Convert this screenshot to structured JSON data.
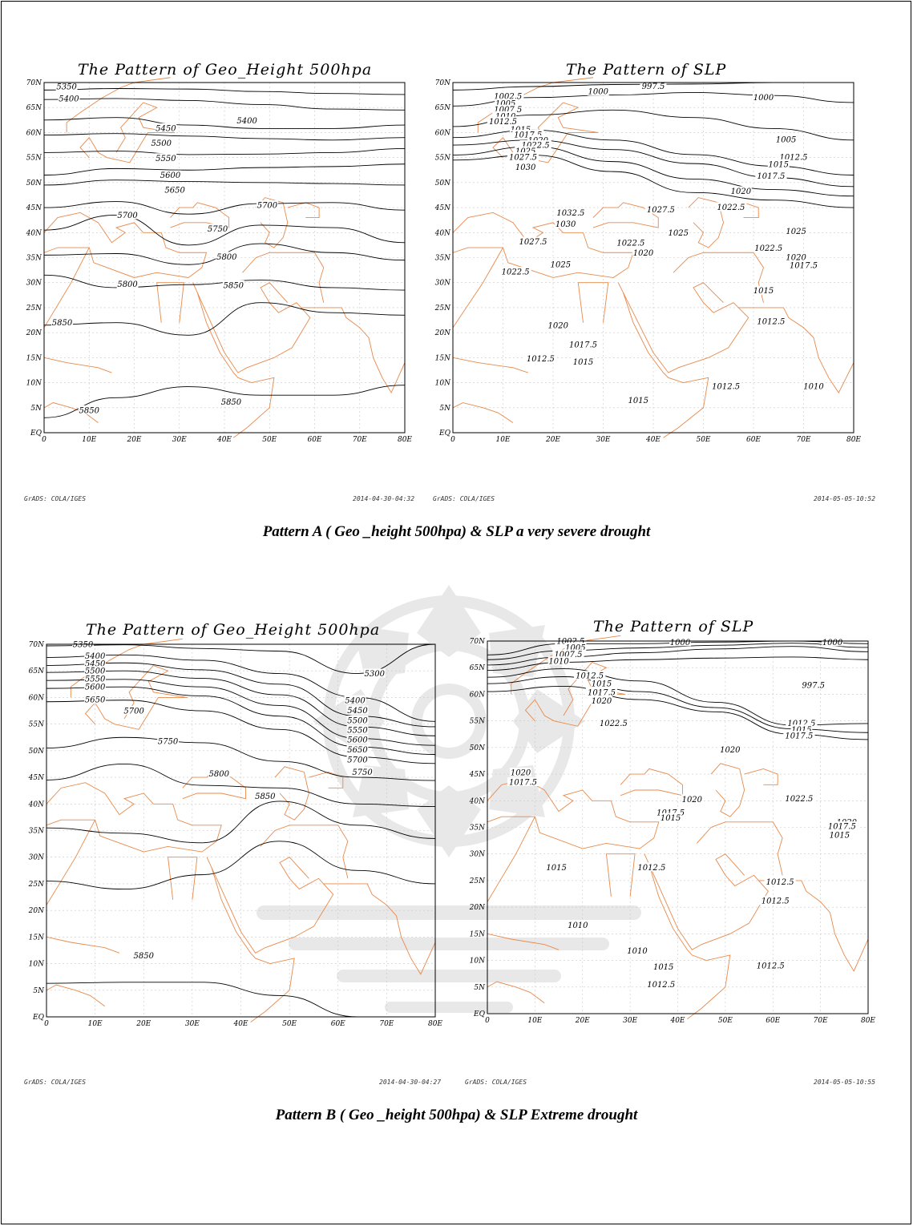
{
  "axis_labels": {
    "lat": [
      "70N",
      "65N",
      "60N",
      "55N",
      "50N",
      "45N",
      "40N",
      "35N",
      "30N",
      "25N",
      "20N",
      "15N",
      "10N",
      "5N",
      "EQ"
    ],
    "lon": [
      "0",
      "10E",
      "20E",
      "30E",
      "40E",
      "50E",
      "60E",
      "70E",
      "80E"
    ]
  },
  "colors": {
    "contour": "#000000",
    "coast": "#e8894a",
    "grid": "#c8c8c8",
    "watermark": "#9a9a9a"
  },
  "pattern_a": {
    "geo": {
      "title": "The Pattern of Geo_Height 500hpa",
      "footer_left": "GrADS: COLA/IGES",
      "footer_right": "2014-04-30-04:32",
      "contours": [
        {
          "value": "5350",
          "lat": [
            68.5,
            68.8,
            68.7,
            68.2,
            67.8,
            67.6
          ]
        },
        {
          "value": "5400",
          "lat": [
            66.6,
            66.8,
            66.4,
            65.6,
            64.7,
            64.5
          ]
        },
        {
          "value": "5450",
          "lat": [
            62.5,
            63,
            61.5,
            60.8,
            60.8,
            61.5
          ]
        },
        {
          "value": "5500",
          "lat": [
            59.5,
            59.8,
            59.3,
            58.8,
            58.5,
            59
          ]
        },
        {
          "value": "5550",
          "lat": [
            56,
            56.3,
            55.6,
            55.7,
            56,
            56.8
          ]
        },
        {
          "value": "5600",
          "lat": [
            51.5,
            52.8,
            52.5,
            53,
            53.2,
            53.7
          ]
        },
        {
          "value": "5650",
          "lat": [
            49.5,
            50.5,
            50.2,
            50,
            49.8,
            49.5
          ]
        },
        {
          "value": "5700",
          "lat": [
            45,
            46.2,
            43.7,
            45.8,
            46,
            44.5
          ]
        },
        {
          "value": "5750",
          "lat": [
            40.5,
            43.5,
            37.5,
            41.5,
            41,
            38
          ]
        },
        {
          "value": "5800",
          "lat": [
            35.5,
            35.8,
            33.6,
            37.8,
            36,
            34.5
          ]
        },
        {
          "value": "5800",
          "lat": [
            31.5,
            29,
            29.6,
            30.5,
            29,
            28.5
          ]
        },
        {
          "value": "5850",
          "lat": [
            21.5,
            22,
            19.5,
            26,
            24,
            23.5
          ]
        },
        {
          "value": "5850",
          "lat": [
            3,
            7,
            9.2,
            7.5,
            7.5,
            9.5
          ]
        }
      ],
      "labels": [
        {
          "text": "5350",
          "lon": 5,
          "lat": 69.2
        },
        {
          "text": "5400",
          "lon": 5.5,
          "lat": 66.8
        },
        {
          "text": "5400",
          "lon": 45,
          "lat": 62.4
        },
        {
          "text": "5450",
          "lon": 27,
          "lat": 60.9
        },
        {
          "text": "5500",
          "lon": 26,
          "lat": 57.9
        },
        {
          "text": "5550",
          "lon": 27,
          "lat": 54.9
        },
        {
          "text": "5600",
          "lon": 28,
          "lat": 51.5
        },
        {
          "text": "5650",
          "lon": 29,
          "lat": 48.5
        },
        {
          "text": "5700",
          "lon": 18.5,
          "lat": 43.5
        },
        {
          "text": "5700",
          "lon": 49.5,
          "lat": 45.5
        },
        {
          "text": "5750",
          "lon": 38.5,
          "lat": 40.8
        },
        {
          "text": "5800",
          "lon": 40.5,
          "lat": 35.2
        },
        {
          "text": "5800",
          "lon": 18.5,
          "lat": 29.7
        },
        {
          "text": "5850",
          "lon": 4,
          "lat": 22
        },
        {
          "text": "5850",
          "lon": 42,
          "lat": 29.5
        },
        {
          "text": "5850",
          "lon": 10,
          "lat": 4.5
        },
        {
          "text": "5850",
          "lon": 41.5,
          "lat": 6.2
        }
      ]
    },
    "slp": {
      "title": "The Pattern of SLP",
      "footer_left": "GrADS: COLA/IGES",
      "footer_right": "2014-05-05-10:52",
      "contours": [
        {
          "value": "997.5",
          "lat": [
            68.5,
            69.2,
            69.6,
            69.7,
            70,
            70
          ]
        },
        {
          "value": "1000",
          "lat": [
            65.3,
            67,
            67.5,
            68,
            67.4,
            66
          ]
        },
        {
          "value": "1005",
          "lat": [
            61.2,
            63.5,
            64.5,
            63,
            60.8,
            58.5
          ]
        },
        {
          "value": "1012.5",
          "lat": [
            59,
            60.5,
            58.5,
            55.6,
            53.3,
            51.5
          ]
        },
        {
          "value": "1015",
          "lat": [
            57.5,
            58.5,
            56.6,
            53.8,
            51,
            49.2
          ]
        },
        {
          "value": "1017.5",
          "lat": [
            55.5,
            57.2,
            54.2,
            50.7,
            48.6,
            47.3
          ]
        },
        {
          "value": "1020",
          "lat": [
            54.5,
            55.5,
            52.2,
            48,
            46.5,
            45
          ]
        }
      ],
      "labels": [
        {
          "text": "997.5",
          "lon": 40,
          "lat": 69.3
        },
        {
          "text": "1000",
          "lon": 29,
          "lat": 68.2
        },
        {
          "text": "1000",
          "lon": 62,
          "lat": 67
        },
        {
          "text": "1002.5",
          "lon": 11,
          "lat": 67.3
        },
        {
          "text": "1005",
          "lon": 10.5,
          "lat": 65.8
        },
        {
          "text": "1007.5",
          "lon": 11,
          "lat": 64.6
        },
        {
          "text": "1010",
          "lon": 10.5,
          "lat": 63.3
        },
        {
          "text": "1012.5",
          "lon": 10,
          "lat": 62.2
        },
        {
          "text": "1015",
          "lon": 13.5,
          "lat": 60.6
        },
        {
          "text": "1017.5",
          "lon": 15,
          "lat": 59.6
        },
        {
          "text": "1020",
          "lon": 17,
          "lat": 58.5
        },
        {
          "text": "1022.5",
          "lon": 16.5,
          "lat": 57.5
        },
        {
          "text": "1025",
          "lon": 14.5,
          "lat": 56.3
        },
        {
          "text": "1027.5",
          "lon": 14,
          "lat": 55.1
        },
        {
          "text": "1030",
          "lon": 14.5,
          "lat": 53.1
        },
        {
          "text": "1005",
          "lon": 66.5,
          "lat": 58.6
        },
        {
          "text": "1012.5",
          "lon": 68,
          "lat": 55.1
        },
        {
          "text": "1015",
          "lon": 65,
          "lat": 53.7
        },
        {
          "text": "1017.5",
          "lon": 63.5,
          "lat": 51.3
        },
        {
          "text": "1020",
          "lon": 57.5,
          "lat": 48.3
        },
        {
          "text": "1022.5",
          "lon": 55.5,
          "lat": 45.1
        },
        {
          "text": "1027.5",
          "lon": 41.5,
          "lat": 44.6
        },
        {
          "text": "1032.5",
          "lon": 23.5,
          "lat": 44
        },
        {
          "text": "1030",
          "lon": 22.5,
          "lat": 41.7
        },
        {
          "text": "1025",
          "lon": 45,
          "lat": 40
        },
        {
          "text": "1025",
          "lon": 68.5,
          "lat": 40.3
        },
        {
          "text": "1027.5",
          "lon": 16,
          "lat": 38.2
        },
        {
          "text": "1022.5",
          "lon": 35.5,
          "lat": 38
        },
        {
          "text": "1020",
          "lon": 38,
          "lat": 36
        },
        {
          "text": "1022.5",
          "lon": 63,
          "lat": 36.9
        },
        {
          "text": "1020",
          "lon": 68.5,
          "lat": 35.1
        },
        {
          "text": "1017.5",
          "lon": 70,
          "lat": 33.5
        },
        {
          "text": "1025",
          "lon": 21.5,
          "lat": 33.6
        },
        {
          "text": "1022.5",
          "lon": 12.5,
          "lat": 32.2
        },
        {
          "text": "1015",
          "lon": 62,
          "lat": 28.4
        },
        {
          "text": "1012.5",
          "lon": 63.5,
          "lat": 22.3
        },
        {
          "text": "1020",
          "lon": 21,
          "lat": 21.5
        },
        {
          "text": "1017.5",
          "lon": 26,
          "lat": 17.6
        },
        {
          "text": "1012.5",
          "lon": 17.5,
          "lat": 14.8
        },
        {
          "text": "1015",
          "lon": 26,
          "lat": 14.2
        },
        {
          "text": "1012.5",
          "lon": 54.5,
          "lat": 9.3
        },
        {
          "text": "1010",
          "lon": 72,
          "lat": 9.3
        },
        {
          "text": "1015",
          "lon": 37,
          "lat": 6.5
        }
      ]
    },
    "caption": "Pattern A ( Geo _height 500hpa) & SLP a very severe drought"
  },
  "pattern_b": {
    "geo": {
      "title": "The Pattern of Geo_Height 500hpa",
      "footer_left": "GrADS: COLA/IGES",
      "footer_right": "2014-04-30-04:27",
      "contours": [
        {
          "value": "5350",
          "lat": [
            69.7,
            69.9,
            69.2,
            68.7,
            64.5,
            70
          ]
        },
        {
          "value": "5400",
          "lat": [
            67.5,
            68,
            67,
            64.5,
            60,
            55.5
          ]
        },
        {
          "value": "5450",
          "lat": [
            66,
            66.5,
            65.2,
            62.5,
            56.5,
            54.5
          ]
        },
        {
          "value": "5500",
          "lat": [
            64.7,
            65,
            63.6,
            60.5,
            54.5,
            52.8
          ]
        },
        {
          "value": "5550",
          "lat": [
            63.2,
            63.4,
            62,
            58.5,
            52.3,
            51
          ]
        },
        {
          "value": "5600",
          "lat": [
            61.7,
            62,
            60.3,
            56.5,
            50.7,
            49.3
          ]
        },
        {
          "value": "5650",
          "lat": [
            59.2,
            59.5,
            57.5,
            54,
            48.8,
            47.6
          ]
        },
        {
          "value": "5700",
          "lat": [
            50.5,
            52.5,
            51.5,
            48,
            45,
            44.4
          ]
        },
        {
          "value": "5750",
          "lat": [
            44.5,
            47.5,
            43.5,
            43,
            40,
            39.5
          ]
        },
        {
          "value": "5800",
          "lat": [
            35.5,
            34.5,
            32.7,
            40.5,
            36,
            33.5
          ]
        },
        {
          "value": "5850",
          "lat": [
            25.5,
            24,
            26.7,
            33,
            27.5,
            25
          ]
        },
        {
          "value": "5850",
          "lat": [
            6.3,
            6.5,
            6.5,
            4,
            0,
            0
          ]
        }
      ],
      "labels": [
        {
          "text": "5350",
          "lon": 7.5,
          "lat": 70
        },
        {
          "text": "5400",
          "lon": 10,
          "lat": 67.8
        },
        {
          "text": "5450",
          "lon": 10,
          "lat": 66.4
        },
        {
          "text": "5500",
          "lon": 10,
          "lat": 65
        },
        {
          "text": "5550",
          "lon": 10,
          "lat": 63.5
        },
        {
          "text": "5600",
          "lon": 10,
          "lat": 62
        },
        {
          "text": "5650",
          "lon": 10,
          "lat": 59.6
        },
        {
          "text": "5700",
          "lon": 18,
          "lat": 57.5
        },
        {
          "text": "5750",
          "lon": 25,
          "lat": 51.8
        },
        {
          "text": "5300",
          "lon": 67.5,
          "lat": 64.5
        },
        {
          "text": "5400",
          "lon": 63.5,
          "lat": 59.5
        },
        {
          "text": "5450",
          "lon": 64,
          "lat": 57.6
        },
        {
          "text": "5500",
          "lon": 64,
          "lat": 55.7
        },
        {
          "text": "5550",
          "lon": 64,
          "lat": 53.9
        },
        {
          "text": "5600",
          "lon": 64,
          "lat": 52.1
        },
        {
          "text": "5650",
          "lon": 64,
          "lat": 50.2
        },
        {
          "text": "5700",
          "lon": 64,
          "lat": 48.3
        },
        {
          "text": "5750",
          "lon": 65,
          "lat": 46
        },
        {
          "text": "5800",
          "lon": 35.5,
          "lat": 45.7
        },
        {
          "text": "5850",
          "lon": 45,
          "lat": 41.5
        },
        {
          "text": "5850",
          "lon": 20,
          "lat": 11.5
        }
      ]
    },
    "slp": {
      "title": "The Pattern of SLP",
      "footer_left": "GrADS: COLA/IGES",
      "footer_right": "2014-05-05-10:55",
      "contours": [
        {
          "value": "1002.5",
          "lat": [
            67.4,
            69.5,
            69.5,
            69.8,
            70,
            69.5
          ]
        },
        {
          "value": "1005",
          "lat": [
            66.5,
            68.2,
            68.7,
            69.2,
            69.6,
            68.8
          ]
        },
        {
          "value": "1007.5",
          "lat": [
            65.5,
            67,
            67.8,
            68.5,
            69,
            68
          ]
        },
        {
          "value": "1010",
          "lat": [
            64.5,
            66,
            66.5,
            66.8,
            67,
            66.5
          ]
        },
        {
          "value": "1012.5",
          "lat": [
            63.2,
            64.8,
            62.5,
            58.5,
            54.2,
            54.5
          ]
        },
        {
          "value": "1015",
          "lat": [
            62,
            63.3,
            60.5,
            57.5,
            53.5,
            52.8
          ]
        },
        {
          "value": "1017.5",
          "lat": [
            60.5,
            61.5,
            59,
            56.7,
            52.5,
            51.5
          ]
        }
      ],
      "labels": [
        {
          "text": "1002.5",
          "lon": 17.5,
          "lat": 70
        },
        {
          "text": "1000",
          "lon": 40.5,
          "lat": 69.8
        },
        {
          "text": "1000",
          "lon": 72.5,
          "lat": 69.8
        },
        {
          "text": "1005",
          "lon": 18.5,
          "lat": 68.8
        },
        {
          "text": "1007.5",
          "lon": 17,
          "lat": 67.5
        },
        {
          "text": "1010",
          "lon": 15,
          "lat": 66.2
        },
        {
          "text": "1012.5",
          "lon": 21.5,
          "lat": 63.5
        },
        {
          "text": "1015",
          "lon": 24,
          "lat": 62
        },
        {
          "text": "1017.5",
          "lon": 24,
          "lat": 60.4
        },
        {
          "text": "1020",
          "lon": 24,
          "lat": 58.8
        },
        {
          "text": "997.5",
          "lon": 68.5,
          "lat": 61.7
        },
        {
          "text": "1022.5",
          "lon": 26.5,
          "lat": 54.6
        },
        {
          "text": "1012.5",
          "lon": 66,
          "lat": 54.6
        },
        {
          "text": "1015",
          "lon": 66,
          "lat": 53.4
        },
        {
          "text": "1017.5",
          "lon": 65.5,
          "lat": 52.2
        },
        {
          "text": "1020",
          "lon": 51,
          "lat": 49.6
        },
        {
          "text": "1020",
          "lon": 7,
          "lat": 45.3
        },
        {
          "text": "1017.5",
          "lon": 7.5,
          "lat": 43.5
        },
        {
          "text": "1020",
          "lon": 43,
          "lat": 40.3
        },
        {
          "text": "1017.5",
          "lon": 38.5,
          "lat": 37.8
        },
        {
          "text": "1015",
          "lon": 38.5,
          "lat": 36.8
        },
        {
          "text": "1022.5",
          "lon": 65.5,
          "lat": 40.4
        },
        {
          "text": "1020",
          "lon": 75.5,
          "lat": 36
        },
        {
          "text": "1017.5",
          "lon": 74.5,
          "lat": 35.2
        },
        {
          "text": "1015",
          "lon": 74,
          "lat": 33.6
        },
        {
          "text": "1015",
          "lon": 14.5,
          "lat": 27.5
        },
        {
          "text": "1012.5",
          "lon": 34.5,
          "lat": 27.5
        },
        {
          "text": "1012.5",
          "lon": 61.5,
          "lat": 24.8
        },
        {
          "text": "1012.5",
          "lon": 60.5,
          "lat": 21.2
        },
        {
          "text": "1010",
          "lon": 19,
          "lat": 16.6
        },
        {
          "text": "1010",
          "lon": 31.5,
          "lat": 11.8
        },
        {
          "text": "1015",
          "lon": 37,
          "lat": 8.8
        },
        {
          "text": "1012.5",
          "lon": 36.5,
          "lat": 5.5
        },
        {
          "text": "1012.5",
          "lon": 59.5,
          "lat": 9
        }
      ]
    },
    "caption": "Pattern B ( Geo _height 500hpa) & SLP Extreme drought"
  }
}
